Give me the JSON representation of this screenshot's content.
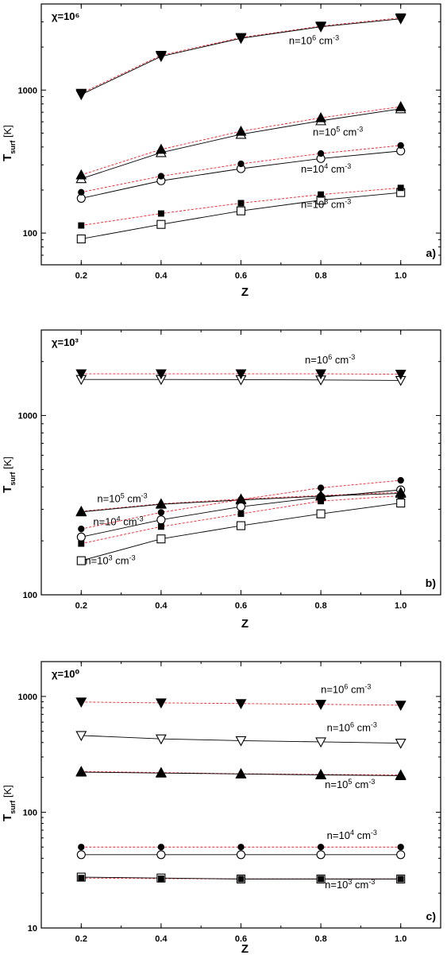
{
  "chart_data": [
    {
      "type": "line",
      "panel": "a)",
      "chi_label": "χ=10⁶",
      "xlabel": "Z",
      "ylabel": "T",
      "ylabel_sub": "surf",
      "ylabel_unit": " [K]",
      "yscale": "log",
      "xlim": [
        0.1,
        1.1
      ],
      "ylim": [
        60,
        4000
      ],
      "x_ticks": [
        0.2,
        0.4,
        0.6,
        0.8,
        1.0
      ],
      "x_tick_labels": [
        "0.2",
        "0.4",
        "0.6",
        "0.8",
        "1.0"
      ],
      "y_ticks": [
        100,
        1000
      ],
      "y_tick_labels": [
        "100",
        "1000"
      ],
      "x": [
        0.2,
        0.4,
        0.6,
        0.8,
        1.0
      ],
      "series": [
        {
          "label": "n=10^6 cm^-3",
          "style": "dashed",
          "marker": "filled-triangle-down",
          "values": [
            950,
            1750,
            2330,
            2800,
            3200
          ]
        },
        {
          "label": "n=10^6 cm^-3",
          "style": "solid",
          "marker": "open-triangle-down",
          "values": [
            930,
            1720,
            2300,
            2770,
            3150
          ]
        },
        {
          "label": "n=10^5 cm^-3",
          "style": "dashed",
          "marker": "filled-triangle-up",
          "values": [
            255,
            385,
            515,
            640,
            765
          ]
        },
        {
          "label": "n=10^5 cm^-3",
          "style": "solid",
          "marker": "open-triangle-up",
          "values": [
            240,
            365,
            490,
            610,
            740
          ]
        },
        {
          "label": "n=10^4 cm^-3",
          "style": "dashed",
          "marker": "filled-circle",
          "values": [
            193,
            250,
            305,
            360,
            410
          ]
        },
        {
          "label": "n=10^4 cm^-3",
          "style": "solid",
          "marker": "open-circle",
          "values": [
            175,
            232,
            282,
            332,
            375
          ]
        },
        {
          "label": "n=10^3 cm^-3",
          "style": "dashed",
          "marker": "filled-square",
          "values": [
            113,
            137,
            162,
            186,
            207
          ]
        },
        {
          "label": "n=10^3 cm^-3",
          "style": "solid",
          "marker": "open-square",
          "values": [
            91,
            115,
            143,
            170,
            192
          ]
        }
      ],
      "annotations": [
        {
          "text": "n=10^6 cm^-3",
          "x": 0.72,
          "y": 2100
        },
        {
          "text": "n=10^5 cm^-3",
          "x": 0.78,
          "y": 480
        },
        {
          "text": "n=10^4 cm^-3",
          "x": 0.75,
          "y": 265
        },
        {
          "text": "n=10^3 cm^-3",
          "x": 0.75,
          "y": 150
        }
      ]
    },
    {
      "type": "line",
      "panel": "b)",
      "chi_label": "χ=10³",
      "xlabel": "Z",
      "ylabel": "T",
      "ylabel_sub": "surf",
      "ylabel_unit": " [K]",
      "yscale": "log",
      "xlim": [
        0.1,
        1.1
      ],
      "ylim": [
        100,
        3000
      ],
      "x_ticks": [
        0.2,
        0.4,
        0.6,
        0.8,
        1.0
      ],
      "x_tick_labels": [
        "0.2",
        "0.4",
        "0.6",
        "0.8",
        "1.0"
      ],
      "y_ticks": [
        100,
        1000
      ],
      "y_tick_labels": [
        "100",
        "1000"
      ],
      "x": [
        0.2,
        0.4,
        0.6,
        0.8,
        1.0
      ],
      "series": [
        {
          "label": "n=10^6 cm^-3",
          "style": "dashed",
          "marker": "filled-triangle-down",
          "values": [
            1710,
            1710,
            1710,
            1710,
            1700
          ]
        },
        {
          "label": "n=10^6 cm^-3",
          "style": "solid",
          "marker": "open-triangle-down",
          "values": [
            1590,
            1590,
            1585,
            1580,
            1570
          ]
        },
        {
          "label": "n=10^5 cm^-3",
          "style": "dashed",
          "marker": "filled-triangle-up",
          "values": [
            292,
            322,
            342,
            358,
            373
          ]
        },
        {
          "label": "n=10^5 cm^-3",
          "style": "solid",
          "marker": "open-triangle-up",
          "values": [
            290,
            320,
            338,
            355,
            368
          ]
        },
        {
          "label": "n=10^4 cm^-3",
          "style": "dashed",
          "marker": "filled-circle",
          "values": [
            233,
            288,
            340,
            395,
            435
          ]
        },
        {
          "label": "n=10^4 cm^-3",
          "style": "solid",
          "marker": "open-circle",
          "values": [
            210,
            262,
            310,
            350,
            385
          ]
        },
        {
          "label": "n=10^3 cm^-3",
          "style": "dashed",
          "marker": "filled-square",
          "values": [
            193,
            240,
            283,
            333,
            357
          ]
        },
        {
          "label": "n=10^3 cm^-3",
          "style": "solid",
          "marker": "open-square",
          "values": [
            155,
            205,
            243,
            283,
            325
          ]
        }
      ],
      "annotations": [
        {
          "text": "n=10^6 cm^-3",
          "x": 0.76,
          "y": 1950
        },
        {
          "text": "n=10^5 cm^-3",
          "x": 0.24,
          "y": 328
        },
        {
          "text": "n=10^4 cm^-3",
          "x": 0.23,
          "y": 245
        },
        {
          "text": "n=10^3 cm^-3",
          "x": 0.21,
          "y": 148
        }
      ]
    },
    {
      "type": "line",
      "panel": "c)",
      "chi_label": "χ=10⁰",
      "xlabel": "Z",
      "ylabel": "T",
      "ylabel_sub": "surf",
      "ylabel_unit": " [K]",
      "yscale": "log",
      "xlim": [
        0.1,
        1.1
      ],
      "ylim": [
        10,
        2000
      ],
      "x_ticks": [
        0.2,
        0.4,
        0.6,
        0.8,
        1.0
      ],
      "x_tick_labels": [
        "0.2",
        "0.4",
        "0.6",
        "0.8",
        "1.0"
      ],
      "y_ticks": [
        10,
        100,
        1000
      ],
      "y_tick_labels": [
        "10",
        "100",
        "1000"
      ],
      "x": [
        0.2,
        0.4,
        0.6,
        0.8,
        1.0
      ],
      "series": [
        {
          "label": "n=10^6 cm^-3",
          "style": "dashed",
          "marker": "filled-triangle-down",
          "values": [
            895,
            880,
            868,
            855,
            840
          ]
        },
        {
          "label": "n=10^6 cm^-3",
          "style": "solid",
          "marker": "open-triangle-down",
          "values": [
            460,
            430,
            415,
            405,
            395
          ]
        },
        {
          "label": "n=10^5 cm^-3",
          "style": "dashed",
          "marker": "filled-triangle-up",
          "values": [
            225,
            220,
            215,
            212,
            210
          ]
        },
        {
          "label": "n=10^5 cm^-3",
          "style": "solid",
          "marker": "open-triangle-up",
          "values": [
            222,
            218,
            214,
            210,
            207
          ]
        },
        {
          "label": "n=10^4 cm^-3",
          "style": "dashed",
          "marker": "filled-circle",
          "values": [
            50,
            50,
            50,
            50,
            50
          ]
        },
        {
          "label": "n=10^4 cm^-3",
          "style": "solid",
          "marker": "open-circle",
          "values": [
            43,
            43,
            43,
            43,
            43
          ]
        },
        {
          "label": "n=10^3 cm^-3",
          "style": "dashed",
          "marker": "filled-square",
          "values": [
            27,
            26.7,
            26.5,
            26.5,
            26.5
          ]
        },
        {
          "label": "n=10^3 cm^-3",
          "style": "solid",
          "marker": "open-square",
          "values": [
            27.5,
            27,
            26.5,
            26.5,
            26.5
          ]
        }
      ],
      "annotations": [
        {
          "text": "n=10^6 cm^-3",
          "x": 0.8,
          "y": 1070
        },
        {
          "text": "n=10^6 cm^-3",
          "x": 0.815,
          "y": 500
        },
        {
          "text": "n=10^5 cm^-3",
          "x": 0.81,
          "y": 162
        },
        {
          "text": "n=10^4 cm^-3",
          "x": 0.815,
          "y": 59
        },
        {
          "text": "n=10^3 cm^-3",
          "x": 0.81,
          "y": 22
        }
      ]
    }
  ],
  "colors": {
    "dashed_line": "#e8202a",
    "solid_line": "#000000",
    "marker": "#000000",
    "frame": "#000000"
  }
}
